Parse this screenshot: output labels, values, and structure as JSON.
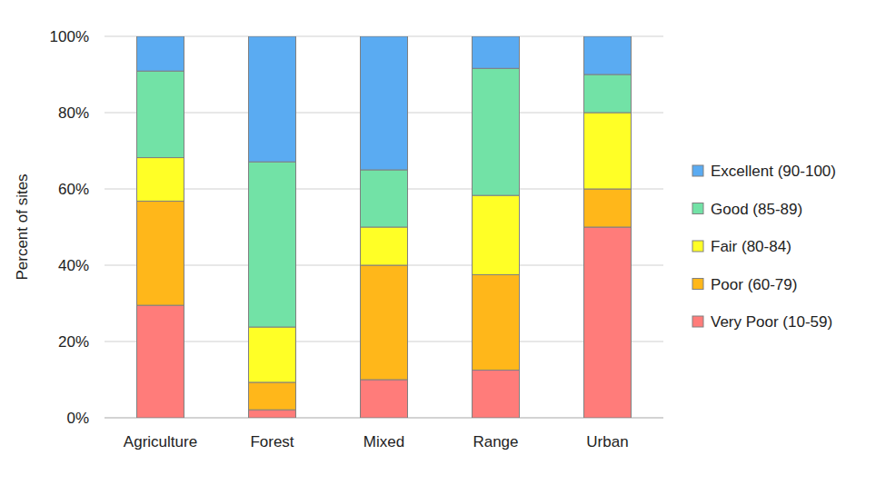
{
  "chart_data": {
    "type": "bar",
    "stacked": true,
    "grid": true,
    "legend": "right",
    "y_label": "Percent of sites",
    "categories": [
      "Agriculture",
      "Forest",
      "Mixed",
      "Range",
      "Urban"
    ],
    "ylim": [
      0,
      100
    ],
    "yticks": [
      {
        "value": 0,
        "label": "0%"
      },
      {
        "value": 20,
        "label": "20%"
      },
      {
        "value": 40,
        "label": "40%"
      },
      {
        "value": 60,
        "label": "60%"
      },
      {
        "value": 80,
        "label": "80%"
      },
      {
        "value": 100,
        "label": "100%"
      }
    ],
    "series": [
      {
        "name": "Very Poor (10-59)",
        "color": "#ff7c7a",
        "values": [
          29.5,
          2.1,
          10,
          12.5,
          50
        ]
      },
      {
        "name": "Poor (60-79)",
        "color": "#ffb71a",
        "values": [
          27.3,
          7.2,
          30,
          25,
          10
        ]
      },
      {
        "name": "Fair (80-84)",
        "color": "#ffff26",
        "values": [
          11.4,
          14.5,
          10,
          20.8,
          20
        ]
      },
      {
        "name": "Good (85-89)",
        "color": "#72e2a6",
        "values": [
          22.7,
          43.3,
          15,
          33.3,
          10
        ]
      },
      {
        "name": "Excellent (90-100)",
        "color": "#5aabf2",
        "values": [
          9.1,
          32.9,
          35,
          8.4,
          10
        ]
      }
    ]
  }
}
